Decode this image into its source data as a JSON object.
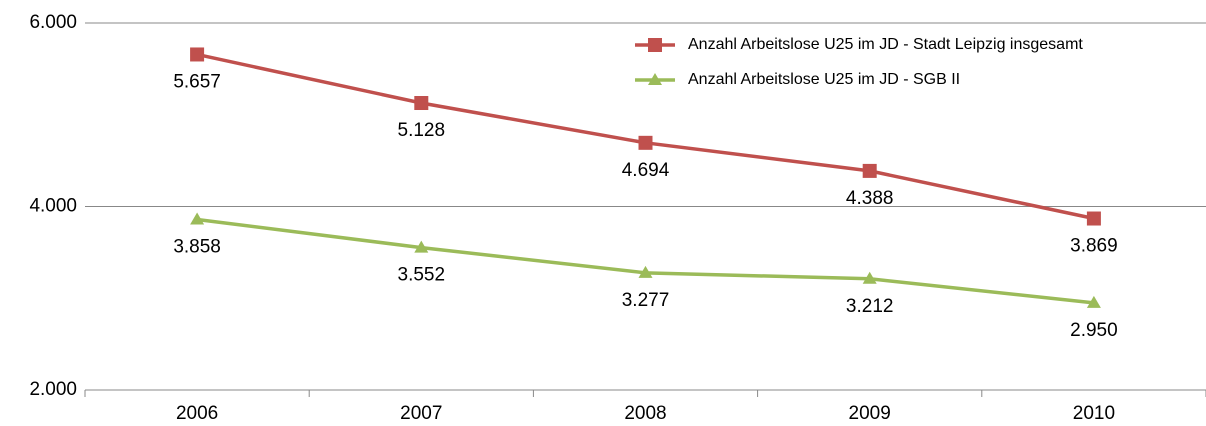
{
  "chart_data": {
    "type": "line",
    "categories": [
      "2006",
      "2007",
      "2008",
      "2009",
      "2010"
    ],
    "series": [
      {
        "name": "Anzahl Arbeitslose U25 im JD - Stadt Leipzig insgesamt",
        "color": "#c0504d",
        "marker": "square",
        "values": [
          5657,
          5128,
          4694,
          4388,
          3869
        ],
        "value_labels": [
          "5.657",
          "5.128",
          "4.694",
          "4.388",
          "3.869"
        ]
      },
      {
        "name": "Anzahl Arbeitslose U25 im JD - SGB II",
        "color": "#9bbb59",
        "marker": "triangle",
        "values": [
          3858,
          3552,
          3277,
          3212,
          2950
        ],
        "value_labels": [
          "3.858",
          "3.552",
          "3.277",
          "3.212",
          "2.950"
        ]
      }
    ],
    "ylim": [
      2000,
      6000
    ],
    "yticks": [
      {
        "value": 2000,
        "label": "2.000"
      },
      {
        "value": 4000,
        "label": "4.000"
      },
      {
        "value": 6000,
        "label": "6.000"
      }
    ],
    "grid": true,
    "legend": "top-right"
  }
}
